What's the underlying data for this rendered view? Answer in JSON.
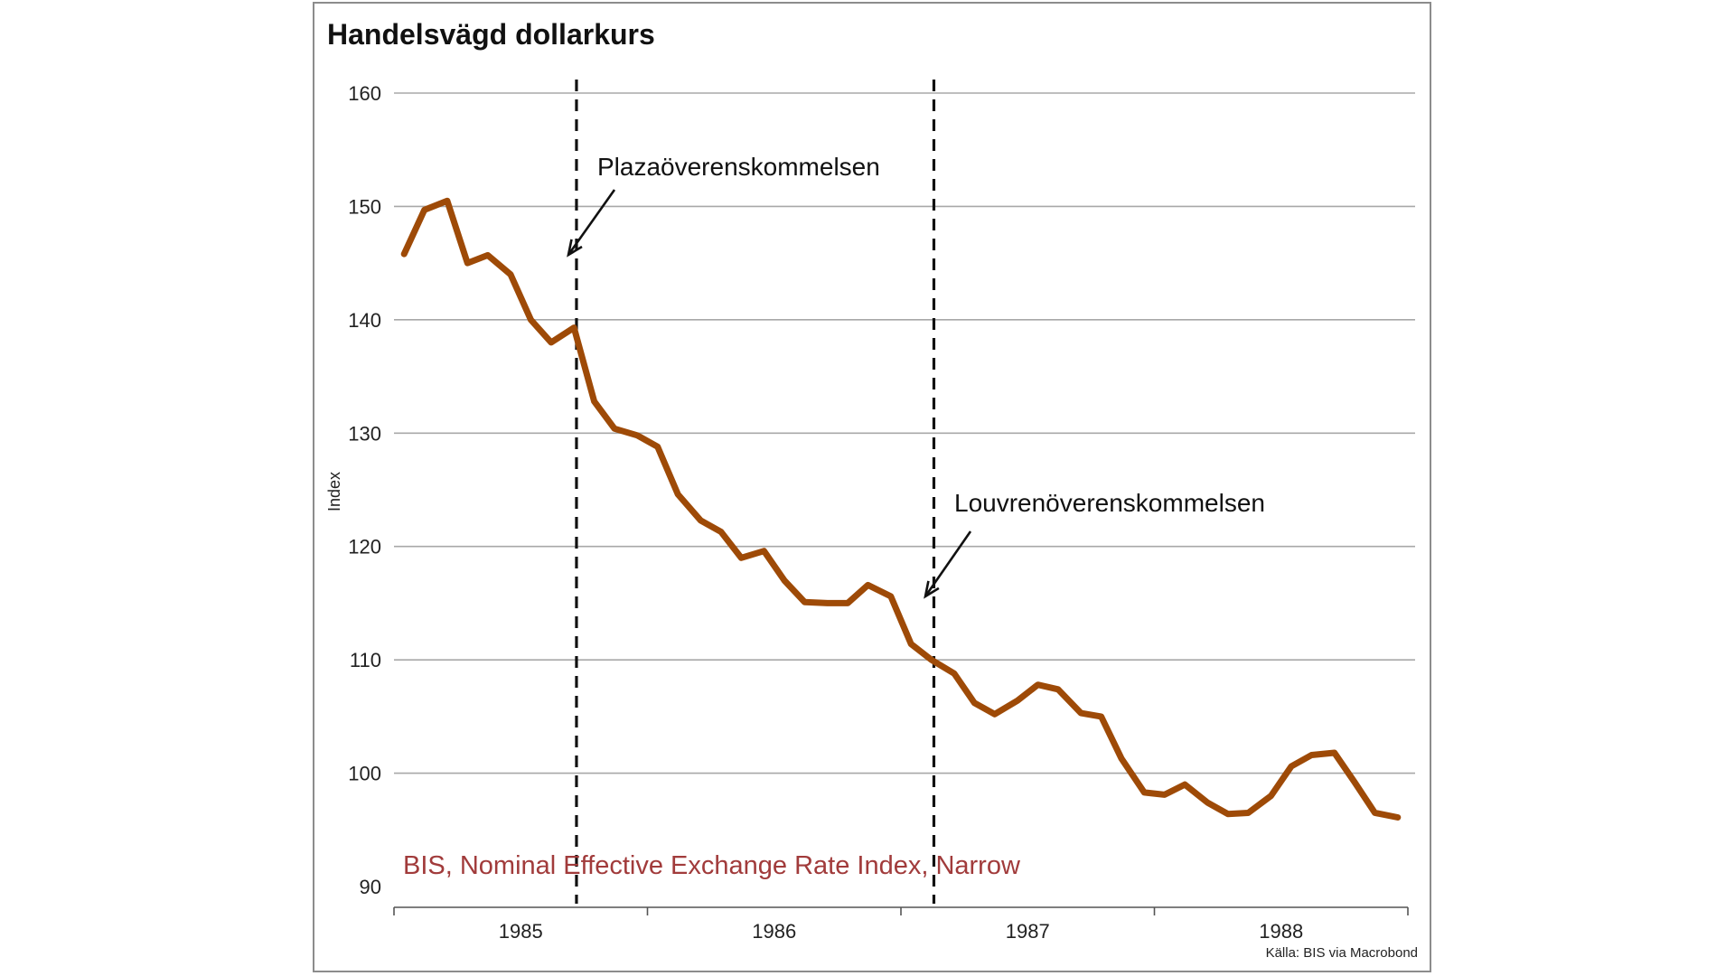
{
  "chart_data": {
    "type": "line",
    "title": "Handelsvägd dollarkurs",
    "ylabel": "Index",
    "xlabel": "",
    "ylim": [
      90,
      160
    ],
    "yticks": [
      160,
      150,
      140,
      130,
      120,
      110,
      100,
      90
    ],
    "xlim": [
      1984.5,
      1988.5
    ],
    "xticks": [
      "1985",
      "1986",
      "1987",
      "1988"
    ],
    "grid": "horizontal",
    "series": [
      {
        "name": "BIS, Nominal Effective Exchange Rate Index, Narrow",
        "color": "#9e4a07",
        "x": [
          1984.54,
          1984.62,
          1984.71,
          1984.79,
          1984.87,
          1984.96,
          1985.04,
          1985.12,
          1985.21,
          1985.29,
          1985.37,
          1985.46,
          1985.54,
          1985.62,
          1985.71,
          1985.79,
          1985.87,
          1985.96,
          1986.04,
          1986.12,
          1986.21,
          1986.29,
          1986.37,
          1986.46,
          1986.54,
          1986.62,
          1986.71,
          1986.79,
          1986.87,
          1986.96,
          1987.04,
          1987.12,
          1987.21,
          1987.29,
          1987.37,
          1987.46,
          1987.54,
          1987.62,
          1987.71,
          1987.79,
          1987.87,
          1987.96,
          1988.04,
          1988.12,
          1988.21,
          1988.29,
          1988.37,
          1988.46
        ],
        "values": [
          145.8,
          149.7,
          150.5,
          145.0,
          145.7,
          144.0,
          140.0,
          138.0,
          139.3,
          132.8,
          130.4,
          129.8,
          128.8,
          124.6,
          122.3,
          121.3,
          119.0,
          119.6,
          117.0,
          115.1,
          115.0,
          115.0,
          116.6,
          115.6,
          111.4,
          110.0,
          108.8,
          106.2,
          105.2,
          106.4,
          107.8,
          107.4,
          105.3,
          105.0,
          101.3,
          98.3,
          98.1,
          99.0,
          97.4,
          96.4,
          96.5,
          98.0,
          100.6,
          101.6,
          101.8,
          99.2,
          96.5,
          96.1
        ]
      }
    ],
    "annotations": [
      {
        "text": "Plazaöverenskommelsen",
        "x": 1985.22
      },
      {
        "text": "Louvrenöverenskommelsen",
        "x": 1986.63
      }
    ],
    "source": "Källa: BIS via Macrobond"
  },
  "colors": {
    "line": "#9e4a07",
    "grid": "#a8a8a8",
    "series_label": "#a13b3b",
    "frame": "#8c8c8c"
  }
}
